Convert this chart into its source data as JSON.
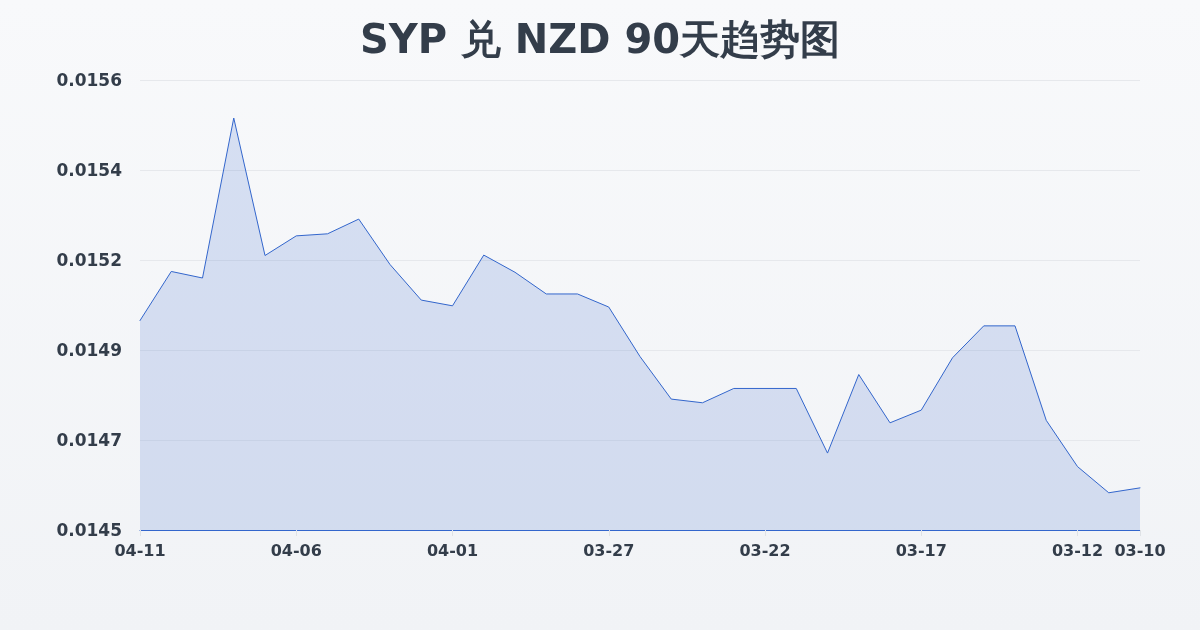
{
  "chart_data": {
    "type": "area",
    "title": "SYP 兑 NZD 90天趋势图",
    "categories": [
      "04-11",
      null,
      null,
      null,
      null,
      "04-06",
      null,
      null,
      null,
      null,
      "04-01",
      null,
      null,
      null,
      null,
      "03-27",
      null,
      null,
      null,
      null,
      "03-22",
      null,
      null,
      null,
      null,
      "03-17",
      null,
      null,
      null,
      null,
      "03-12",
      null,
      "03-10"
    ],
    "series": [
      {
        "color": "#3366cc",
        "values": [
          0.015012,
          0.015132,
          0.015116,
          0.015507,
          0.015171,
          0.015219,
          0.015224,
          0.01526,
          0.015149,
          0.015062,
          0.015048,
          0.015172,
          0.01513,
          0.015077,
          0.015077,
          0.015045,
          0.014924,
          0.01482,
          0.014811,
          0.014846,
          0.014846,
          0.014846,
          0.014688,
          0.01488,
          0.014762,
          0.014793,
          0.014921,
          0.014999,
          0.014999,
          0.014768,
          0.014655,
          0.014591,
          0.014603
        ]
      }
    ],
    "ylim": [
      0.0145,
      0.0156
    ],
    "yticks": [
      0.0145,
      {
        "value": 0.01472,
        "label": "0.0147"
      },
      {
        "value": 0.01494,
        "label": "0.0149"
      },
      {
        "value": 0.01516,
        "label": "0.0152"
      },
      {
        "value": 0.01538,
        "label": "0.0154"
      },
      0.0156
    ],
    "grid": "y",
    "marker": "none",
    "line_style": "solid"
  }
}
